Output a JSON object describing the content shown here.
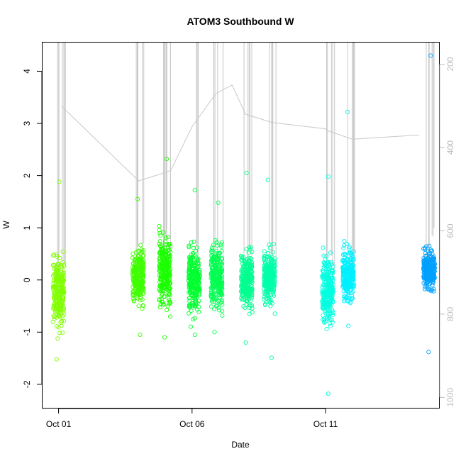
{
  "chart_data": {
    "type": "scatter",
    "title": "ATOM3 Southbound W",
    "xlabel": "Date",
    "ylabel": "W",
    "x_ticks": [
      {
        "day": 1,
        "label": "Oct 01"
      },
      {
        "day": 6,
        "label": "Oct 06"
      },
      {
        "day": 11,
        "label": "Oct 11"
      }
    ],
    "xlim_days": [
      0.4,
      15.25
    ],
    "ylim": [
      -2.45,
      4.55
    ],
    "y_ticks": [
      -2,
      -1,
      0,
      1,
      2,
      3,
      4
    ],
    "y2_ticks": [
      200,
      400,
      600,
      800,
      1000
    ],
    "y2lim_reversed": [
      1025,
      148
    ],
    "y2_color": "#bdbdbd",
    "grid": false,
    "legend": "none",
    "point_clusters": [
      {
        "day": 1.0,
        "center": -0.2,
        "spread": 0.45,
        "min": -1.52,
        "max": 1.88,
        "color": "#80ff00"
      },
      {
        "day": 3.98,
        "center": 0.05,
        "spread": 0.35,
        "min": -1.05,
        "max": 1.55,
        "color": "#3fff00"
      },
      {
        "day": 4.98,
        "center": 0.2,
        "spread": 0.45,
        "min": -1.1,
        "max": 2.32,
        "color": "#1aff00"
      },
      {
        "day": 6.08,
        "center": 0.0,
        "spread": 0.4,
        "min": -1.05,
        "max": 1.72,
        "color": "#00ff30"
      },
      {
        "day": 6.92,
        "center": 0.05,
        "spread": 0.4,
        "min": -1.0,
        "max": 1.48,
        "color": "#00ff50"
      },
      {
        "day": 8.05,
        "center": 0.0,
        "spread": 0.35,
        "min": -1.2,
        "max": 2.05,
        "color": "#00ff90"
      },
      {
        "day": 8.9,
        "center": 0.05,
        "spread": 0.35,
        "min": -1.49,
        "max": 1.92,
        "color": "#00ffaa"
      },
      {
        "day": 11.08,
        "center": -0.2,
        "spread": 0.4,
        "min": -2.18,
        "max": 1.98,
        "color": "#00ffe0"
      },
      {
        "day": 11.85,
        "center": 0.1,
        "spread": 0.35,
        "min": -0.88,
        "max": 3.22,
        "color": "#00f0ff"
      },
      {
        "day": 14.88,
        "center": 0.2,
        "spread": 0.25,
        "min": -1.38,
        "max": 4.3,
        "color": "#00a0ff"
      }
    ],
    "depth_trace": {
      "color": "#c8c8c8",
      "line_days": [
        1.1,
        4.0,
        4.5,
        5.0,
        5.2,
        6.0,
        6.9,
        7.5,
        8.0,
        8.5,
        9.0,
        11.0,
        11.1,
        12.0,
        14.5
      ],
      "line_depths": [
        300,
        480,
        470,
        460,
        455,
        350,
        270,
        250,
        320,
        330,
        340,
        355,
        360,
        380,
        370
      ]
    }
  }
}
